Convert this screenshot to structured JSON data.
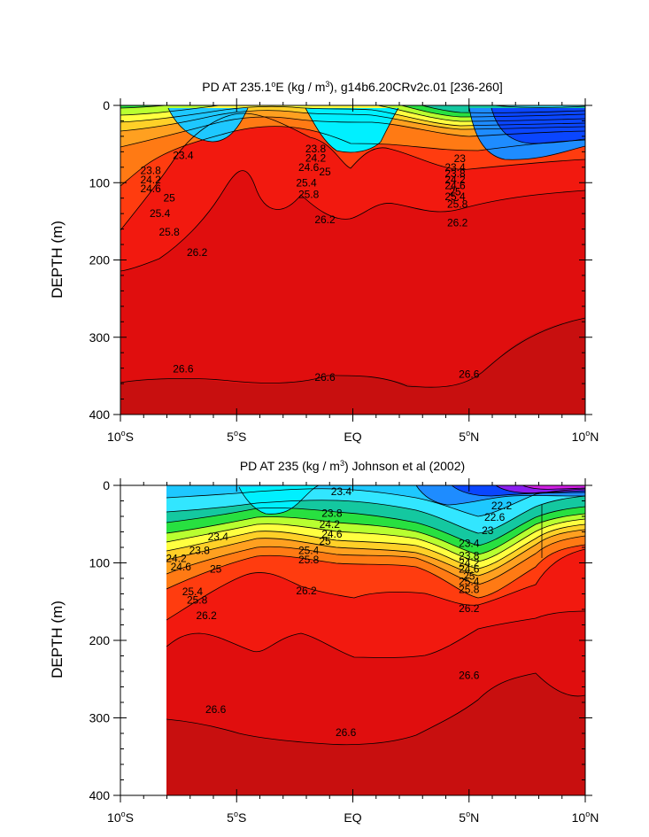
{
  "chart_data": [
    {
      "type": "contour",
      "title": "PD AT 235.1°E (kg / m³), g14b6.20CRv2c.01 [236-260]",
      "title_parts": {
        "pre": "PD AT 235.1",
        "sup1": "o",
        "mid": "E (kg / m",
        "sup2": "3",
        "post": "), g14b6.20CRv2c.01 [236-260]"
      },
      "ylabel": "DEPTH (m)",
      "ylim": [
        0,
        400
      ],
      "y_inverted": true,
      "y_ticks": [
        0,
        100,
        200,
        300,
        400
      ],
      "x_range": [
        -10,
        10
      ],
      "x_ticks": [
        {
          "v": -10,
          "num": "10",
          "deg": "o",
          "hemi": "S"
        },
        {
          "v": -5,
          "num": "5",
          "deg": "o",
          "hemi": "S"
        },
        {
          "v": 0,
          "num": "EQ",
          "deg": "",
          "hemi": ""
        },
        {
          "v": 5,
          "num": "5",
          "deg": "o",
          "hemi": "N"
        },
        {
          "v": 10,
          "num": "10",
          "deg": "o",
          "hemi": "N"
        }
      ],
      "data_x_start": -10,
      "contour_levels": [
        22.6,
        23.0,
        23.4,
        23.8,
        24.2,
        24.6,
        25.0,
        25.4,
        25.8,
        26.2,
        26.6
      ],
      "contour_labels": [
        {
          "t": "23.4",
          "x": -7.3,
          "y": 65
        },
        {
          "t": "23.8",
          "x": -8.7,
          "y": 84
        },
        {
          "t": "24.2",
          "x": -8.7,
          "y": 96
        },
        {
          "t": "24.6",
          "x": -8.7,
          "y": 108
        },
        {
          "t": "25",
          "x": -7.9,
          "y": 120
        },
        {
          "t": "25.4",
          "x": -8.3,
          "y": 140
        },
        {
          "t": "25.8",
          "x": -7.9,
          "y": 164
        },
        {
          "t": "26.2",
          "x": -6.7,
          "y": 190
        },
        {
          "t": "26.6",
          "x": -7.3,
          "y": 341
        },
        {
          "t": "23.8",
          "x": -1.6,
          "y": 56
        },
        {
          "t": "24.2",
          "x": -1.6,
          "y": 68
        },
        {
          "t": "24.6",
          "x": -1.9,
          "y": 80
        },
        {
          "t": "25",
          "x": -1.2,
          "y": 86
        },
        {
          "t": "25.4",
          "x": -2.0,
          "y": 100
        },
        {
          "t": "25.8",
          "x": -1.9,
          "y": 115
        },
        {
          "t": "26.2",
          "x": -1.2,
          "y": 148
        },
        {
          "t": "26.6",
          "x": -1.2,
          "y": 352
        },
        {
          "t": "23",
          "x": 4.6,
          "y": 69
        },
        {
          "t": "23.4",
          "x": 4.4,
          "y": 80
        },
        {
          "t": "23.8",
          "x": 4.4,
          "y": 88
        },
        {
          "t": "24.2",
          "x": 4.4,
          "y": 96
        },
        {
          "t": "24.6",
          "x": 4.4,
          "y": 104
        },
        {
          "t": "25",
          "x": 4.4,
          "y": 112
        },
        {
          "t": "25.4",
          "x": 4.4,
          "y": 118
        },
        {
          "t": "25.8",
          "x": 4.5,
          "y": 128
        },
        {
          "t": "26.2",
          "x": 4.5,
          "y": 152
        },
        {
          "t": "26.6",
          "x": 5.0,
          "y": 348
        }
      ]
    },
    {
      "type": "contour",
      "title": "PD AT 235 (kg / m³) Johnson et al (2002)",
      "title_parts": {
        "pre": "PD AT 235 (kg / m",
        "sup1": "",
        "mid": "",
        "sup2": "3",
        "post": ") Johnson et al (2002)"
      },
      "ylabel": "DEPTH (m)",
      "ylim": [
        0,
        400
      ],
      "y_inverted": true,
      "y_ticks": [
        0,
        100,
        200,
        300,
        400
      ],
      "x_range": [
        -10,
        10
      ],
      "x_ticks": [
        {
          "v": -10,
          "num": "10",
          "deg": "o",
          "hemi": "S"
        },
        {
          "v": -5,
          "num": "5",
          "deg": "o",
          "hemi": "S"
        },
        {
          "v": 0,
          "num": "EQ",
          "deg": "",
          "hemi": ""
        },
        {
          "v": 5,
          "num": "5",
          "deg": "o",
          "hemi": "N"
        },
        {
          "v": 10,
          "num": "10",
          "deg": "o",
          "hemi": "N"
        }
      ],
      "data_x_start": -8,
      "contour_levels": [
        22.2,
        22.6,
        23.0,
        23.4,
        23.8,
        24.2,
        24.6,
        25.0,
        25.4,
        25.8,
        26.2,
        26.6
      ],
      "contour_labels": [
        {
          "t": "23.4",
          "x": -5.8,
          "y": 66
        },
        {
          "t": "23.8",
          "x": -6.6,
          "y": 84
        },
        {
          "t": "24.2",
          "x": -7.6,
          "y": 94
        },
        {
          "t": "24.6",
          "x": -7.4,
          "y": 105
        },
        {
          "t": "25",
          "x": -5.9,
          "y": 108
        },
        {
          "t": "25.4",
          "x": -6.9,
          "y": 137
        },
        {
          "t": "25.8",
          "x": -6.7,
          "y": 148
        },
        {
          "t": "26.2",
          "x": -6.3,
          "y": 168
        },
        {
          "t": "26.6",
          "x": -5.9,
          "y": 289
        },
        {
          "t": "23.4",
          "x": -0.5,
          "y": 8
        },
        {
          "t": "23.8",
          "x": -0.9,
          "y": 36
        },
        {
          "t": "24.2",
          "x": -1.0,
          "y": 50
        },
        {
          "t": "24.6",
          "x": -0.9,
          "y": 63
        },
        {
          "t": "25",
          "x": -1.2,
          "y": 72
        },
        {
          "t": "25.4",
          "x": -1.9,
          "y": 84
        },
        {
          "t": "25.8",
          "x": -1.9,
          "y": 96
        },
        {
          "t": "26.2",
          "x": -2.0,
          "y": 136
        },
        {
          "t": "26.6",
          "x": -0.3,
          "y": 319
        },
        {
          "t": "22.2",
          "x": 6.4,
          "y": 26
        },
        {
          "t": "22.6",
          "x": 6.1,
          "y": 41
        },
        {
          "t": "23",
          "x": 5.8,
          "y": 58
        },
        {
          "t": "23.4",
          "x": 5.0,
          "y": 75
        },
        {
          "t": "23.8",
          "x": 5.0,
          "y": 91
        },
        {
          "t": "24.2",
          "x": 5.0,
          "y": 100
        },
        {
          "t": "24.6",
          "x": 5.0,
          "y": 108
        },
        {
          "t": "25",
          "x": 5.0,
          "y": 117
        },
        {
          "t": "25.4",
          "x": 5.0,
          "y": 124
        },
        {
          "t": "25.8",
          "x": 5.0,
          "y": 134
        },
        {
          "t": "26.2",
          "x": 5.0,
          "y": 159
        },
        {
          "t": "26.6",
          "x": 5.0,
          "y": 245
        }
      ]
    }
  ]
}
